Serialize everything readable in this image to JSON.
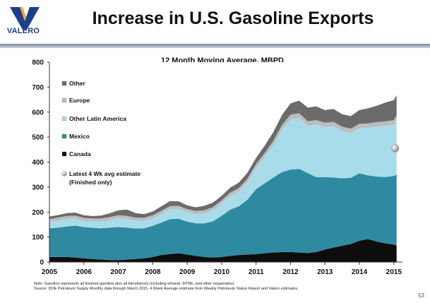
{
  "header": {
    "logo_text": "VALERO",
    "title": "Increase in U.S. Gasoline Exports"
  },
  "chart_data": {
    "type": "area",
    "title": "12 Month Moving Average, MBPD",
    "xlabel": "",
    "ylabel": "",
    "x": [
      2005.0,
      2005.25,
      2005.5,
      2005.75,
      2006.0,
      2006.25,
      2006.5,
      2006.75,
      2007.0,
      2007.25,
      2007.5,
      2007.75,
      2008.0,
      2008.25,
      2008.5,
      2008.75,
      2009.0,
      2009.25,
      2009.5,
      2009.75,
      2010.0,
      2010.25,
      2010.5,
      2010.75,
      2011.0,
      2011.25,
      2011.5,
      2011.75,
      2012.0,
      2012.25,
      2012.5,
      2012.75,
      2013.0,
      2013.25,
      2013.5,
      2013.75,
      2014.0,
      2014.25,
      2014.5,
      2014.75,
      2015.0,
      2015.08
    ],
    "xlim": [
      2005,
      2015.25
    ],
    "xticks": [
      "2005",
      "2006",
      "2007",
      "2008",
      "2009",
      "2010",
      "2011",
      "2012",
      "2013",
      "2014",
      "2015"
    ],
    "ylim": [
      0,
      800
    ],
    "yticks": [
      "0",
      "100",
      "200",
      "300",
      "400",
      "500",
      "600",
      "700",
      "800"
    ],
    "grid": false,
    "legend_position": "top-left",
    "series": [
      {
        "name": "Canada",
        "color": "#0d0d0d",
        "values": [
          20,
          20,
          20,
          18,
          15,
          12,
          10,
          8,
          8,
          10,
          12,
          15,
          20,
          28,
          32,
          35,
          30,
          25,
          20,
          18,
          20,
          25,
          28,
          30,
          32,
          35,
          38,
          40,
          40,
          38,
          36,
          40,
          50,
          58,
          65,
          72,
          85,
          92,
          82,
          75,
          70,
          65
        ]
      },
      {
        "name": "Mexico",
        "color": "#2e8aa0",
        "values": [
          115,
          118,
          122,
          128,
          125,
          125,
          125,
          130,
          132,
          128,
          122,
          120,
          125,
          130,
          140,
          138,
          132,
          130,
          135,
          145,
          165,
          185,
          195,
          220,
          260,
          280,
          300,
          320,
          330,
          335,
          320,
          300,
          290,
          280,
          270,
          265,
          270,
          255,
          260,
          265,
          275,
          285
        ]
      },
      {
        "name": "Other Latin America",
        "color": "#a8dceb",
        "values": [
          25,
          28,
          30,
          28,
          25,
          25,
          27,
          30,
          35,
          35,
          32,
          30,
          30,
          35,
          40,
          40,
          38,
          37,
          40,
          45,
          50,
          55,
          60,
          70,
          85,
          105,
          130,
          170,
          200,
          205,
          190,
          210,
          200,
          205,
          190,
          180,
          180,
          190,
          200,
          205,
          205,
          220
        ]
      },
      {
        "name": "Europe",
        "color": "#bdbdbd",
        "values": [
          12,
          12,
          12,
          12,
          12,
          12,
          12,
          12,
          12,
          12,
          12,
          12,
          12,
          12,
          12,
          12,
          12,
          12,
          12,
          12,
          12,
          13,
          13,
          14,
          15,
          16,
          17,
          18,
          20,
          18,
          17,
          18,
          18,
          18,
          17,
          17,
          18,
          18,
          18,
          18,
          18,
          18
        ]
      },
      {
        "name": "Other",
        "color": "#6b6b6b",
        "values": [
          10,
          10,
          12,
          12,
          10,
          10,
          12,
          15,
          20,
          25,
          18,
          15,
          15,
          18,
          20,
          18,
          15,
          15,
          18,
          18,
          18,
          20,
          22,
          24,
          25,
          30,
          35,
          40,
          45,
          50,
          55,
          55,
          50,
          52,
          50,
          50,
          55,
          60,
          65,
          75,
          80,
          80
        ]
      }
    ],
    "estimate_marker": {
      "name": "Latest 4 Wk avg estimate (Finished only)",
      "x": 2015.2,
      "y": 455
    }
  },
  "legend": {
    "other": "Other",
    "europe": "Europe",
    "other_latin_america": "Other Latin America",
    "mexico": "Mexico",
    "canada": "Canada",
    "estimate_line1": "Latest 4 Wk avg estimate",
    "estimate_line2": "(Finished only)"
  },
  "notes": {
    "note1": "Note:  Gasoline represents all finished gasoline plus all blendstocks (including ethanol, MTBE, and other oxygenates)",
    "note2": "Source: DOE Petroleum Supply Monthly data through March 2015.  4 Week Average estimate from Weekly Petroleum Status Report and Valero estimates."
  },
  "page_number": "53"
}
